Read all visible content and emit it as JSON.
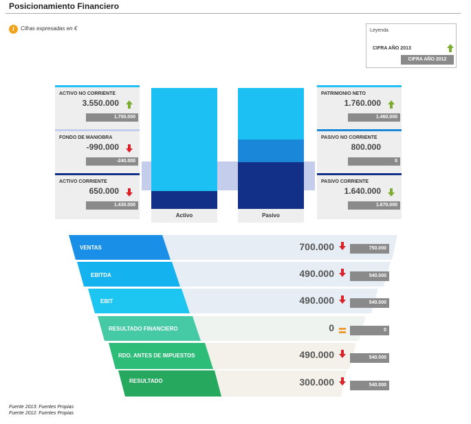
{
  "header": {
    "title": "Posicionamiento Financiero",
    "note": "Cifras expresadas en €",
    "note_icon": "info-icon"
  },
  "legend": {
    "title": "Leyenda",
    "current": "CIFRA AÑO 2013",
    "previous": "CIFRA AÑO 2012"
  },
  "colors": {
    "cyan": "#1cc0f3",
    "navy": "#123087",
    "blue": "#1b87d8",
    "band": "#c4cdec",
    "up": "#7dac2f",
    "down": "#d92128",
    "equal": "#f09a2e",
    "prev": "#8a8a8a"
  },
  "balance": {
    "left": [
      {
        "label": "ACTIVO NO CORRIENTE",
        "value": "3.550.000",
        "prev": "1.700.000",
        "trend": "up",
        "bar": "#1cc0f3"
      },
      {
        "label": "FONDO DE MANIOBRA",
        "value": "-990.000",
        "prev": "-240.000",
        "trend": "down",
        "bar": "#c4cdec"
      },
      {
        "label": "ACTIVO CORRIENTE",
        "value": "650.000",
        "prev": "1.430.000",
        "trend": "down",
        "bar": "#123087"
      }
    ],
    "right": [
      {
        "label": "PATRIMONIO NETO",
        "value": "1.760.000",
        "prev": "1.460.000",
        "trend": "up",
        "bar": "#1cc0f3"
      },
      {
        "label": "PASIVO NO CORRIENTE",
        "value": "800.000",
        "prev": "0",
        "trend": "none",
        "bar": "#1b87d8"
      },
      {
        "label": "PASIVO CORRIENTE",
        "value": "1.640.000",
        "prev": "1.670.000",
        "trend": "down-green",
        "bar": "#123087"
      }
    ],
    "activo_label": "Activo",
    "pasivo_label": "Pasivo"
  },
  "chart_data": [
    {
      "type": "bar",
      "categories": [
        "Activo",
        "Pasivo"
      ],
      "stacked": true,
      "series": [
        {
          "name": "ACTIVO NO CORRIENTE",
          "stack": "Activo",
          "value": 3550000,
          "color": "#1cc0f3"
        },
        {
          "name": "ACTIVO CORRIENTE",
          "stack": "Activo",
          "value": 650000,
          "color": "#123087"
        },
        {
          "name": "PATRIMONIO NETO",
          "stack": "Pasivo",
          "value": 1760000,
          "color": "#1cc0f3"
        },
        {
          "name": "PASIVO NO CORRIENTE",
          "stack": "Pasivo",
          "value": 800000,
          "color": "#1b87d8"
        },
        {
          "name": "PASIVO CORRIENTE",
          "stack": "Pasivo",
          "value": 1640000,
          "color": "#123087"
        }
      ]
    },
    {
      "type": "table",
      "title": "",
      "rows": [
        {
          "label": "VENTAS",
          "value": "700.000",
          "prev": "750.000",
          "trend": "down",
          "color": "#1a8fe8"
        },
        {
          "label": "EBITDA",
          "value": "490.000",
          "prev": "540.000",
          "trend": "down",
          "color": "#14b3ef"
        },
        {
          "label": "EBIT",
          "value": "490.000",
          "prev": "540.000",
          "trend": "down",
          "color": "#1cc6f0"
        },
        {
          "label": "RESULTADO FINANCIERO",
          "value": "0",
          "prev": "0",
          "trend": "equal",
          "color": "#45caa5"
        },
        {
          "label": "RDO. ANTES DE IMPUESTOS",
          "value": "490.000",
          "prev": "540.000",
          "trend": "down",
          "color": "#2dbd78"
        },
        {
          "label": "RESULTADO",
          "value": "300.000",
          "prev": "540.000",
          "trend": "down",
          "color": "#26a85e"
        }
      ]
    }
  ],
  "sources": [
    "Fuente 2013: Fuentes Propias",
    "Fuente 2012: Fuentes Propias"
  ]
}
